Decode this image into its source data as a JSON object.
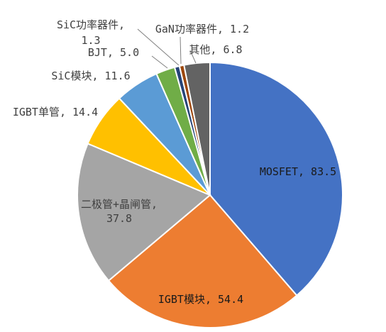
{
  "chart_data": {
    "type": "pie",
    "title": "",
    "unit": "",
    "slices": [
      {
        "name": "MOSFET",
        "value": 83.5,
        "color": "#4472C4",
        "label_lines": [
          "MOSFET, 83.5"
        ]
      },
      {
        "name": "IGBT模块",
        "value": 54.4,
        "color": "#ED7D31",
        "label_lines": [
          "IGBT模块, 54.4"
        ]
      },
      {
        "name": "二极管+晶闸管",
        "value": 37.8,
        "color": "#A5A5A5",
        "label_lines": [
          "二极管+晶闸管,",
          "37.8"
        ]
      },
      {
        "name": "IGBT单管",
        "value": 14.4,
        "color": "#FFC000",
        "label_lines": [
          "IGBT单管, 14.4"
        ]
      },
      {
        "name": "SiC模块",
        "value": 11.6,
        "color": "#5B9BD5",
        "label_lines": [
          "SiC模块, 11.6"
        ]
      },
      {
        "name": "BJT",
        "value": 5.0,
        "color": "#70AD47",
        "label_lines": [
          "BJT, 5.0"
        ]
      },
      {
        "name": "SiC功率器件",
        "value": 1.3,
        "color": "#264478",
        "label_lines": [
          "SiC功率器件,",
          "1.3"
        ]
      },
      {
        "name": "GaN功率器件",
        "value": 1.2,
        "color": "#9E480E",
        "label_lines": [
          "GaN功率器件, 1.2"
        ]
      },
      {
        "name": "其他",
        "value": 6.8,
        "color": "#636363",
        "label_lines": [
          "其他, 6.8"
        ]
      }
    ],
    "start_angle": "12 o'clock",
    "direction": "clockwise",
    "legend": "none",
    "data_labels": "name and value"
  }
}
